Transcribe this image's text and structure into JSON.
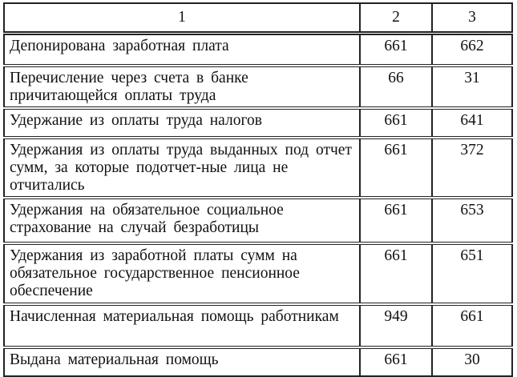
{
  "header": [
    "1",
    "2",
    "3"
  ],
  "rows": [
    {
      "description": "Депонирована заработная плата",
      "debit": "661",
      "credit": "662"
    },
    {
      "description": "Перечисление через счета в банке причитающейся оплаты труда",
      "debit": "66",
      "credit": "31"
    },
    {
      "description": "Удержание из оплаты труда налогов",
      "debit": "661",
      "credit": "641"
    },
    {
      "description": "Удержания из оплаты труда выданных под отчет сумм, за которые подотчет-ные лица не отчитались",
      "debit": "661",
      "credit": "372"
    },
    {
      "description": "Удержания на обязательное социальное страхование на случай безработицы",
      "debit": "661",
      "credit": "653"
    },
    {
      "description": "Удержания из заработной платы сумм на обязательное государственное пенсионное обеспечение",
      "debit": "661",
      "credit": "651"
    },
    {
      "description": "Начисленная материальная помощь работникам",
      "debit": "949",
      "credit": "661"
    },
    {
      "description": "Выдана материальная помощь",
      "debit": "661",
      "credit": "30"
    }
  ]
}
